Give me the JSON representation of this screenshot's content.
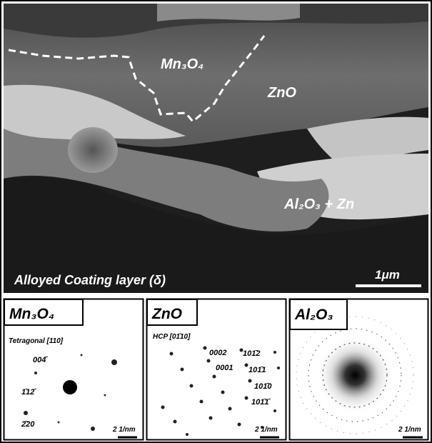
{
  "main_image": {
    "labels": [
      "Mn₃O₄",
      "ZnO",
      "Al₂O₃ + Zn"
    ],
    "caption": "Alloyed Coating layer (δ)",
    "scale_bar": "1μm"
  },
  "panels": [
    {
      "title": "Mn₃O₄",
      "zone_axis": "Tetragonal [110]",
      "indices": [
        "004̄",
        "1̄12̄",
        "2̄20"
      ],
      "scale_bar": "2 1/nm"
    },
    {
      "title": "ZnO",
      "zone_axis": "HCP [01̄10]",
      "indices": [
        "0002",
        "0001",
        "101̄2",
        "101̄1",
        "101̄0",
        "101̄1̄"
      ],
      "scale_bar": "2 1/nm"
    },
    {
      "title": "Al₂O₃",
      "scale_bar": "2 1/nm"
    }
  ]
}
